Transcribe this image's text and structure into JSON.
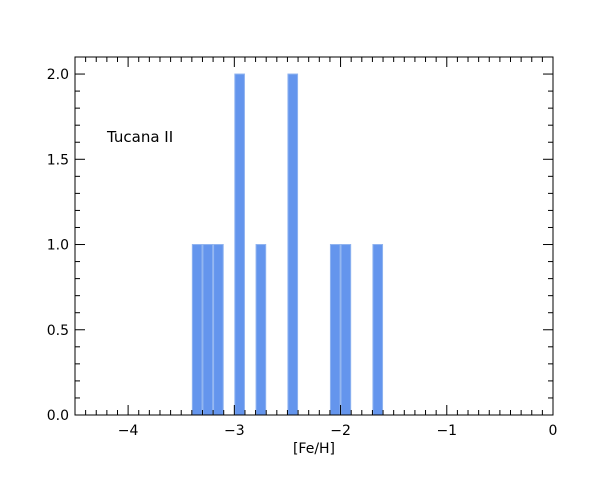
{
  "chart_data": {
    "type": "bar",
    "xlabel": "[Fe/H]",
    "ylabel": "",
    "annotation": "Tucana II",
    "xlim": [
      -4.5,
      0
    ],
    "ylim": [
      0,
      2.1
    ],
    "bin_width": 0.1,
    "bins": [
      {
        "x0": -3.4,
        "x1": -3.3,
        "count": 1
      },
      {
        "x0": -3.3,
        "x1": -3.2,
        "count": 1
      },
      {
        "x0": -3.2,
        "x1": -3.1,
        "count": 1
      },
      {
        "x0": -3.0,
        "x1": -2.9,
        "count": 2
      },
      {
        "x0": -2.8,
        "x1": -2.7,
        "count": 1
      },
      {
        "x0": -2.5,
        "x1": -2.4,
        "count": 2
      },
      {
        "x0": -2.1,
        "x1": -2.0,
        "count": 1
      },
      {
        "x0": -2.0,
        "x1": -1.9,
        "count": 1
      },
      {
        "x0": -1.7,
        "x1": -1.6,
        "count": 1
      }
    ],
    "x_ticks": [
      {
        "value": -4,
        "label": "−4"
      },
      {
        "value": -3,
        "label": "−3"
      },
      {
        "value": -2,
        "label": "−2"
      },
      {
        "value": -1,
        "label": "−1"
      },
      {
        "value": 0,
        "label": "0"
      }
    ],
    "y_ticks": [
      {
        "value": 0,
        "label": "0.0"
      },
      {
        "value": 0.5,
        "label": "0.5"
      },
      {
        "value": 1.0,
        "label": "1.0"
      },
      {
        "value": 1.5,
        "label": "1.5"
      },
      {
        "value": 2.0,
        "label": "2.0"
      }
    ],
    "x_minor_step": 0.1,
    "y_minor_step": 0.1,
    "grid": false,
    "bar_color": "#6495ED",
    "bar_edge_color": "#8fb3f0"
  }
}
